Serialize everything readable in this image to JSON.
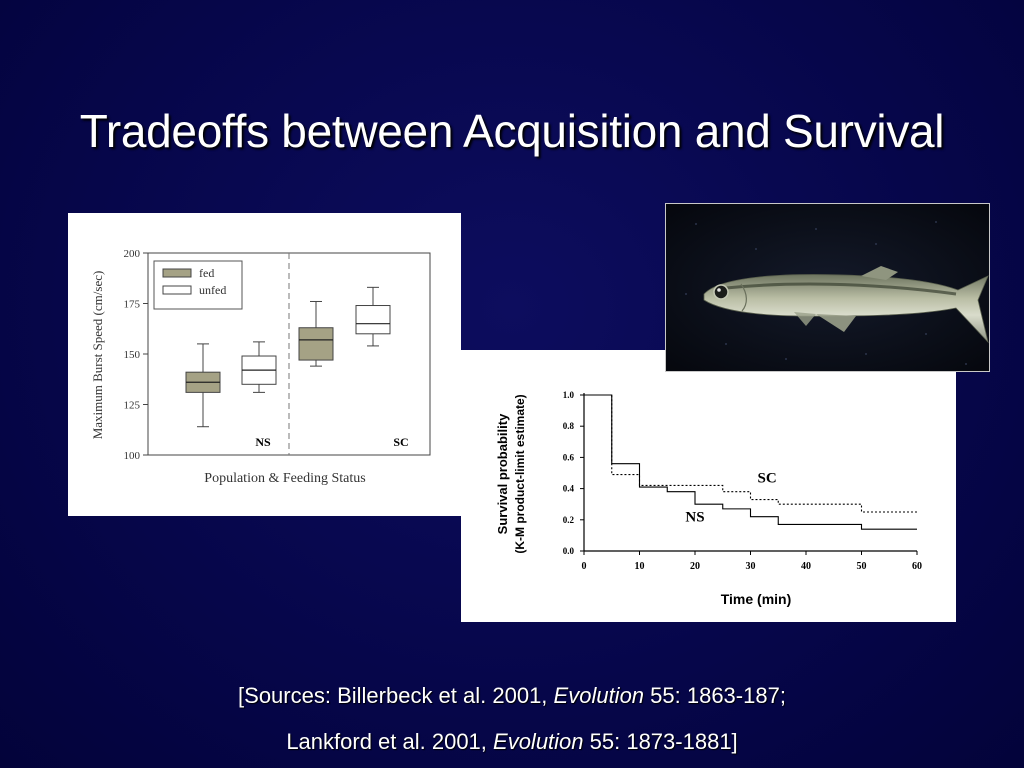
{
  "slide": {
    "title": "Tradeoffs between Acquisition and Survival",
    "sources_line1": {
      "pre": "[Sources: Billerbeck et al. 2001, ",
      "journal": "Evolution",
      "post": " 55: 1863-187;"
    },
    "sources_line2": {
      "pre": "Lankford et al. 2001, ",
      "journal": "Evolution",
      "post": " 55: 1873-1881]"
    },
    "photo_icon": "silverside-fish-photo"
  },
  "chart_data": [
    {
      "type": "boxplot",
      "xlabel": "Population & Feeding Status",
      "ylabel": "Maximum Burst Speed (cm/sec)",
      "ylim": [
        100,
        200
      ],
      "yticks": [
        100,
        125,
        150,
        175,
        200
      ],
      "legend": {
        "placement": "top-left",
        "entries": [
          {
            "name": "fed",
            "color": "#a5a285"
          },
          {
            "name": "unfed",
            "color": "#ffffff"
          }
        ]
      },
      "groups": [
        {
          "label": "NS",
          "boxes": [
            {
              "series": "fed",
              "min": 114,
              "q1": 131,
              "median": 136,
              "q3": 141,
              "max": 155
            },
            {
              "series": "unfed",
              "min": 131,
              "q1": 135,
              "median": 142,
              "q3": 149,
              "max": 156
            }
          ]
        },
        {
          "label": "SC",
          "boxes": [
            {
              "series": "fed",
              "min": 144,
              "q1": 147,
              "median": 157,
              "q3": 163,
              "max": 176
            },
            {
              "series": "unfed",
              "min": 154,
              "q1": 160,
              "median": 165,
              "q3": 174,
              "max": 183
            }
          ]
        }
      ],
      "divider": "dashed"
    },
    {
      "type": "line",
      "step": true,
      "xlabel": "Time (min)",
      "ylabel_line1": "Survival probability",
      "ylabel_line2": "(K-M product-limit estimate)",
      "xlim": [
        0,
        60
      ],
      "ylim": [
        0,
        1
      ],
      "xticks": [
        0,
        10,
        20,
        30,
        40,
        50,
        60
      ],
      "yticks": [
        "0.0",
        "0.2",
        "0.4",
        "0.6",
        "0.8",
        "1.0"
      ],
      "series": [
        {
          "name": "NS",
          "style": "solid",
          "x": [
            0,
            5,
            10,
            15,
            20,
            25,
            30,
            35,
            50,
            60
          ],
          "y": [
            1.0,
            0.56,
            0.41,
            0.38,
            0.3,
            0.27,
            0.22,
            0.17,
            0.14,
            0.14
          ]
        },
        {
          "name": "SC",
          "style": "dotted",
          "x": [
            0,
            5,
            10,
            25,
            30,
            35,
            50,
            60
          ],
          "y": [
            1.0,
            0.49,
            0.42,
            0.38,
            0.33,
            0.3,
            0.25,
            0.25
          ]
        }
      ],
      "series_labels": [
        {
          "name": "NS",
          "x": 20,
          "y": 0.19
        },
        {
          "name": "SC",
          "x": 33,
          "y": 0.44
        }
      ]
    }
  ]
}
